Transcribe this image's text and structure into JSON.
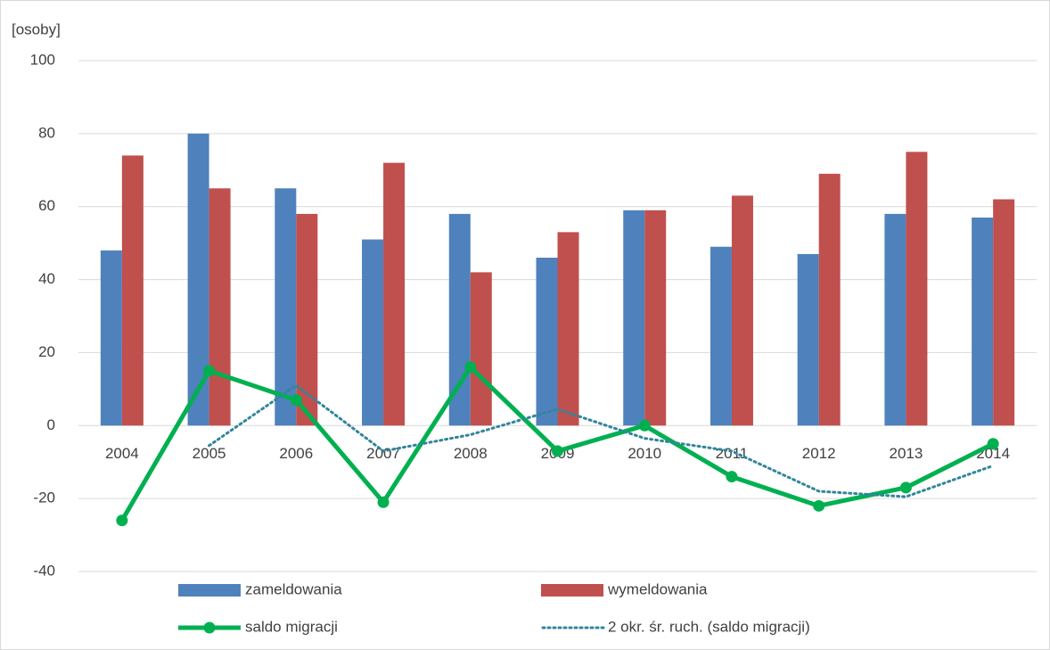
{
  "chart_data": {
    "type": "bar_line",
    "y_label": "[osoby]",
    "categories": [
      "2004",
      "2005",
      "2006",
      "2007",
      "2008",
      "2009",
      "2010",
      "2011",
      "2012",
      "2013",
      "2014"
    ],
    "series": [
      {
        "name": "zameldowania",
        "type": "bar",
        "color": "#4f81bd",
        "values": [
          48,
          80,
          65,
          51,
          58,
          46,
          59,
          49,
          47,
          58,
          57
        ]
      },
      {
        "name": "wymeldowania",
        "type": "bar",
        "color": "#c0504d",
        "values": [
          74,
          65,
          58,
          72,
          42,
          53,
          59,
          63,
          69,
          75,
          62
        ]
      },
      {
        "name": "saldo migracji",
        "type": "line",
        "color": "#00b050",
        "values": [
          -26,
          15,
          7,
          -21,
          16,
          -7,
          0,
          -14,
          -22,
          -17,
          -5
        ]
      },
      {
        "name": "2 okr. śr. ruch. (saldo migracji)",
        "type": "dotted",
        "color": "#31859c",
        "values": [
          null,
          -5.5,
          11,
          -7,
          -2.5,
          4.5,
          -3.5,
          -7,
          -18,
          -19.5,
          -11
        ]
      }
    ],
    "ylim": [
      -40,
      100
    ],
    "yticks": [
      -40,
      -20,
      0,
      20,
      40,
      60,
      80,
      100
    ],
    "grid": true
  }
}
